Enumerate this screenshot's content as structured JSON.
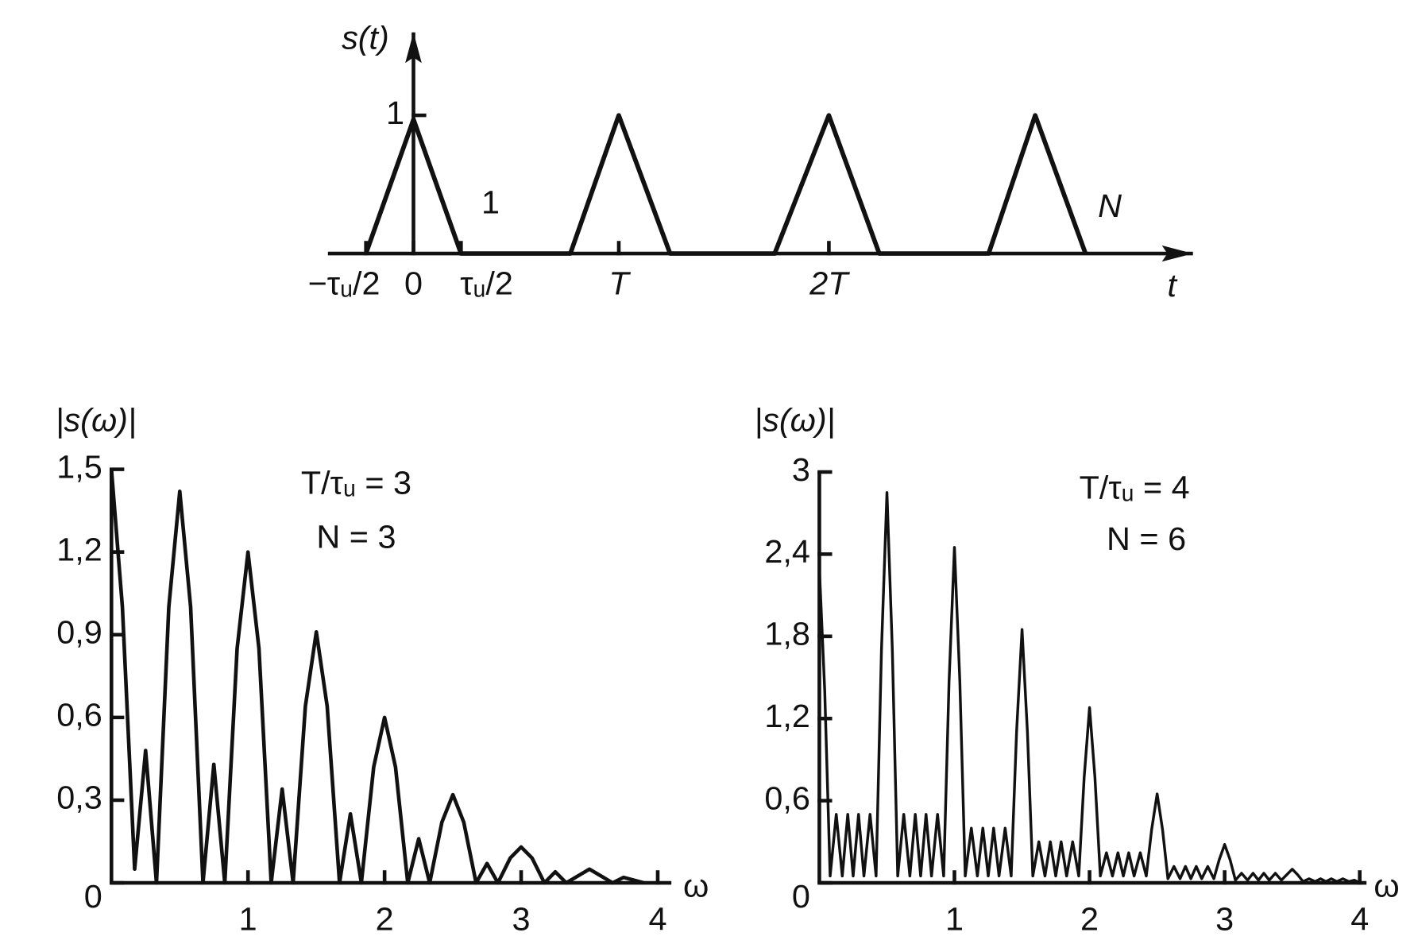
{
  "chart_data": [
    {
      "type": "line",
      "y_label": "s(t)",
      "x_label": "t",
      "annotations": [
        "1",
        "N"
      ],
      "axis_arrows": true,
      "color": "#111111",
      "x": [
        -0.5,
        0,
        0.5,
        1.65,
        2.16,
        2.7,
        3.8,
        4.37,
        4.9,
        6.05,
        6.54,
        7.07
      ],
      "values": [
        0,
        0.97,
        0,
        0,
        1,
        0,
        0,
        1,
        0,
        0,
        1,
        0
      ],
      "xlim": [
        -0.9,
        8.2
      ],
      "ylim": [
        0,
        1.6
      ],
      "xticks": [
        {
          "value": -0.5,
          "label": "−τᵤ/2"
        },
        0,
        {
          "value": 0.5,
          "label": "τᵤ/2"
        },
        {
          "value": 2.16,
          "label": "T"
        },
        {
          "value": 4.37,
          "label": "2T"
        }
      ],
      "yticks": [
        1
      ]
    },
    {
      "type": "line",
      "y_label": "|s(ω)|",
      "x_label": "ω",
      "annotations": [
        "T/τᵤ = 3",
        "N = 3"
      ],
      "color": "#111111",
      "x": [
        0,
        0.08,
        0.17,
        0.25,
        0.33,
        0.42,
        0.5,
        0.58,
        0.67,
        0.75,
        0.83,
        0.92,
        1.0,
        1.08,
        1.17,
        1.25,
        1.33,
        1.42,
        1.5,
        1.58,
        1.67,
        1.75,
        1.83,
        1.92,
        2.0,
        2.08,
        2.17,
        2.25,
        2.33,
        2.42,
        2.5,
        2.58,
        2.67,
        2.75,
        2.83,
        2.92,
        3.0,
        3.08,
        3.17,
        3.25,
        3.33,
        3.5,
        3.67,
        3.75,
        3.9
      ],
      "values": [
        1.5,
        1.0,
        0.05,
        0.48,
        0,
        1.0,
        1.42,
        1.0,
        0,
        0.43,
        0,
        0.85,
        1.2,
        0.85,
        0,
        0.34,
        0,
        0.64,
        0.91,
        0.64,
        0,
        0.25,
        0,
        0.42,
        0.6,
        0.42,
        0,
        0.16,
        0,
        0.22,
        0.32,
        0.22,
        0,
        0.07,
        0,
        0.09,
        0.13,
        0.09,
        0,
        0.04,
        0,
        0.05,
        0,
        0.02,
        0
      ],
      "xlim": [
        0,
        4.1
      ],
      "ylim": [
        0,
        1.5
      ],
      "xticks": [
        1,
        2,
        3,
        4
      ],
      "yticks": [
        0,
        {
          "value": 0.3,
          "label": "0,3"
        },
        {
          "value": 0.6,
          "label": "0,6"
        },
        {
          "value": 0.9,
          "label": "0,9"
        },
        {
          "value": 1.2,
          "label": "1,2"
        },
        {
          "value": 1.5,
          "label": "1,5"
        }
      ]
    },
    {
      "type": "line",
      "y_label": "|s(ω)|",
      "x_label": "ω",
      "annotations": [
        "T/τᵤ = 4",
        "N = 6"
      ],
      "color": "#111111",
      "x": [
        0,
        0.04,
        0.08,
        0.125,
        0.17,
        0.21,
        0.25,
        0.29,
        0.33,
        0.375,
        0.42,
        0.46,
        0.5,
        0.54,
        0.58,
        0.625,
        0.67,
        0.71,
        0.75,
        0.79,
        0.83,
        0.875,
        0.92,
        0.96,
        1.0,
        1.04,
        1.08,
        1.125,
        1.17,
        1.21,
        1.25,
        1.29,
        1.33,
        1.375,
        1.42,
        1.46,
        1.5,
        1.54,
        1.58,
        1.625,
        1.67,
        1.71,
        1.75,
        1.79,
        1.83,
        1.875,
        1.92,
        1.96,
        2.0,
        2.04,
        2.08,
        2.125,
        2.17,
        2.21,
        2.25,
        2.29,
        2.33,
        2.375,
        2.42,
        2.46,
        2.5,
        2.54,
        2.58,
        2.625,
        2.67,
        2.71,
        2.75,
        2.79,
        2.83,
        2.875,
        2.92,
        2.96,
        3.0,
        3.04,
        3.08,
        3.125,
        3.17,
        3.21,
        3.25,
        3.29,
        3.33,
        3.375,
        3.42,
        3.46,
        3.5,
        3.54,
        3.58,
        3.625,
        3.67,
        3.71,
        3.75,
        3.79,
        3.83,
        3.875,
        3.92,
        3.96,
        4.0
      ],
      "values": [
        2.3,
        1.4,
        0.05,
        0.5,
        0.05,
        0.5,
        0.05,
        0.5,
        0.05,
        0.5,
        0.05,
        1.7,
        2.85,
        1.7,
        0.05,
        0.5,
        0.05,
        0.5,
        0.05,
        0.5,
        0.05,
        0.5,
        0.05,
        1.47,
        2.45,
        1.47,
        0.05,
        0.4,
        0.05,
        0.4,
        0.05,
        0.4,
        0.05,
        0.4,
        0.05,
        1.1,
        1.85,
        1.1,
        0.05,
        0.3,
        0.05,
        0.3,
        0.05,
        0.3,
        0.05,
        0.3,
        0.05,
        0.77,
        1.28,
        0.77,
        0.05,
        0.22,
        0.05,
        0.22,
        0.05,
        0.22,
        0.05,
        0.22,
        0.05,
        0.39,
        0.65,
        0.39,
        0.03,
        0.12,
        0.03,
        0.12,
        0.03,
        0.12,
        0.03,
        0.12,
        0.03,
        0.17,
        0.28,
        0.17,
        0.02,
        0.07,
        0.02,
        0.07,
        0.02,
        0.07,
        0.02,
        0.07,
        0.02,
        0.06,
        0.1,
        0.06,
        0.01,
        0.03,
        0.01,
        0.03,
        0.01,
        0.03,
        0.01,
        0.03,
        0.01,
        0.02,
        0
      ],
      "xlim": [
        0,
        4.05
      ],
      "ylim": [
        0,
        3
      ],
      "xticks": [
        1,
        2,
        3,
        4
      ],
      "yticks": [
        0,
        {
          "value": 0.6,
          "label": "0,6"
        },
        {
          "value": 1.2,
          "label": "1,2"
        },
        {
          "value": 1.8,
          "label": "1,8"
        },
        {
          "value": 2.4,
          "label": "2,4"
        },
        3
      ]
    }
  ]
}
